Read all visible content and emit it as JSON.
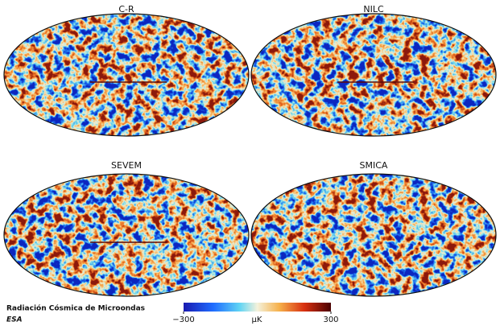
{
  "maps": [
    {
      "title": "C-R"
    },
    {
      "title": "NILC"
    },
    {
      "title": "SEVEM"
    },
    {
      "title": "SMICA"
    }
  ],
  "caption": {
    "title": "Radiación Cósmica de Microondas",
    "credit": "ESA"
  },
  "colorbar": {
    "lim": [
      -300,
      300
    ],
    "ticks": [
      {
        "value": -300,
        "label": "−300"
      },
      300
    ],
    "unit": "μK"
  }
}
